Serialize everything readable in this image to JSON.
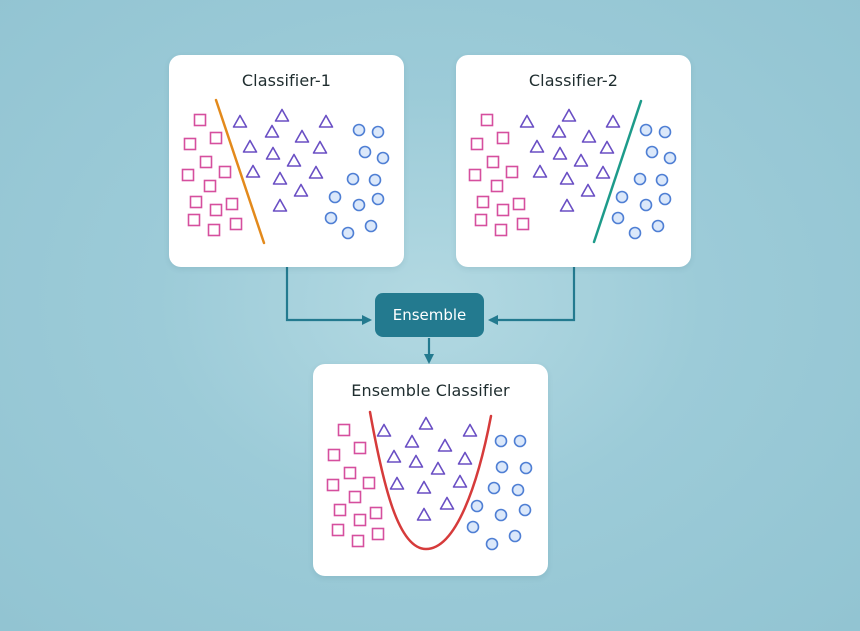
{
  "classifier1": {
    "title": "Classifier-1",
    "boundary_color": "#e38a1c"
  },
  "classifier2": {
    "title": "Classifier-2",
    "boundary_color": "#1e9b8a"
  },
  "ensemble": {
    "label": "Ensemble",
    "color": "#237a8f"
  },
  "ensemble_classifier": {
    "title": "Ensemble Classifier",
    "boundary_color": "#d63b3b"
  },
  "colors": {
    "square": "#d64f9e",
    "triangle": "#6a4fc4",
    "circle": "#4f7fd4",
    "connector": "#237a8f"
  },
  "icons": {
    "square": "square-marker-icon",
    "triangle": "triangle-marker-icon",
    "circle": "circle-marker-icon"
  }
}
